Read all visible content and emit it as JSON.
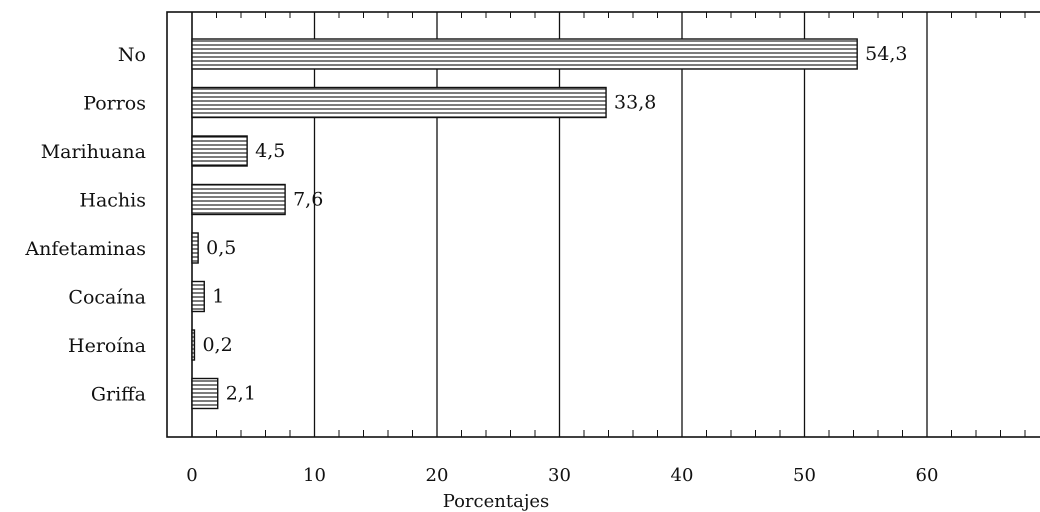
{
  "chart_data": {
    "type": "bar",
    "orientation": "horizontal",
    "categories": [
      "No",
      "Porros",
      "Marihuana",
      "Hachis",
      "Anfetaminas",
      "Cocaína",
      "Heroína",
      "Griffa"
    ],
    "values": [
      54.3,
      33.8,
      4.5,
      7.6,
      0.5,
      1,
      0.2,
      2.1
    ],
    "value_labels": [
      "54,3",
      "33,8",
      "4,5",
      "7,6",
      "0,5",
      "1",
      "0,2",
      "2,1"
    ],
    "xlabel": "Porcentajes",
    "ylabel": "",
    "title": "",
    "xlim": [
      0,
      68
    ],
    "x_ticks": [
      0,
      10,
      20,
      30,
      40,
      50,
      60
    ],
    "grid": "vertical lines at major ticks",
    "bar_fill": "horizontal hatch",
    "legend": "none"
  }
}
